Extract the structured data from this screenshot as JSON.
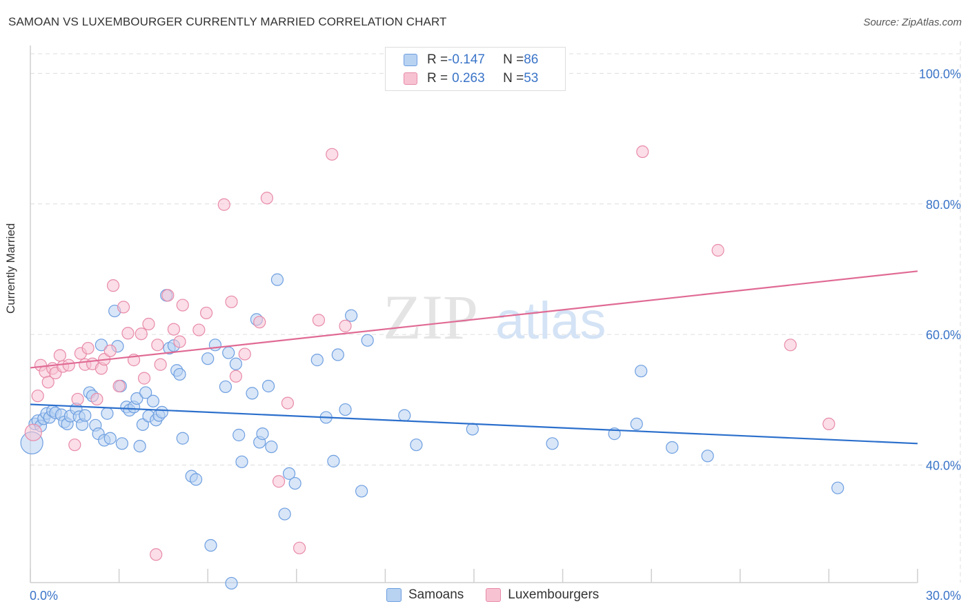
{
  "title": "SAMOAN VS LUXEMBOURGER CURRENTLY MARRIED CORRELATION CHART",
  "source": "Source: ZipAtlas.com",
  "watermark": {
    "zip": "ZIP",
    "atlas": "atlas"
  },
  "legend": {
    "rows": [
      {
        "r_label": "R = ",
        "r_value": "-0.147",
        "n_label": "N = ",
        "n_value": "86"
      },
      {
        "r_label": "R = ",
        "r_value": "0.263",
        "n_label": "N = ",
        "n_value": "53"
      }
    ]
  },
  "colors": {
    "samoans_fill": "#b8d2f2",
    "samoans_stroke": "#6d9ee0",
    "samoans_line": "#2b6fcc",
    "lux_fill": "#f7c3d3",
    "lux_stroke": "#e88aa8",
    "lux_line": "#e06a94",
    "tick_label": "#3a74c8",
    "grid": "#dddddd"
  },
  "chart_data": {
    "type": "scatter",
    "ylabel": "Currently Married",
    "xlim": [
      0,
      30
    ],
    "ylim": [
      22,
      103
    ],
    "x_tick_labels": [
      {
        "value": 0,
        "label": "0.0%"
      },
      {
        "value": 30,
        "label": "30.0%"
      }
    ],
    "y_tick_labels": [
      {
        "value": 40,
        "label": "40.0%"
      },
      {
        "value": 60,
        "label": "60.0%"
      },
      {
        "value": 80,
        "label": "80.0%"
      },
      {
        "value": 100,
        "label": "100.0%"
      }
    ],
    "grid": true,
    "legend_position": "bottom",
    "series": [
      {
        "name": "Samoans",
        "color": "#6d9ee0",
        "trend": {
          "x": [
            0,
            30
          ],
          "y": [
            49.3,
            43.3
          ]
        },
        "points": [
          [
            0.05,
            43.4
          ],
          [
            0.15,
            46.3
          ],
          [
            0.25,
            46.8
          ],
          [
            0.35,
            46.0
          ],
          [
            0.45,
            47.1
          ],
          [
            0.55,
            47.9
          ],
          [
            0.65,
            47.3
          ],
          [
            0.75,
            48.3
          ],
          [
            0.85,
            48.0
          ],
          [
            1.05,
            47.7
          ],
          [
            1.15,
            46.6
          ],
          [
            1.25,
            46.3
          ],
          [
            1.35,
            47.5
          ],
          [
            1.55,
            48.6
          ],
          [
            1.65,
            47.4
          ],
          [
            1.75,
            46.2
          ],
          [
            1.85,
            47.6
          ],
          [
            2.0,
            51.1
          ],
          [
            2.1,
            50.6
          ],
          [
            2.2,
            46.1
          ],
          [
            2.3,
            44.8
          ],
          [
            2.4,
            58.4
          ],
          [
            2.5,
            43.8
          ],
          [
            2.6,
            47.9
          ],
          [
            2.7,
            44.1
          ],
          [
            2.85,
            63.6
          ],
          [
            2.95,
            58.2
          ],
          [
            3.05,
            52.1
          ],
          [
            3.1,
            43.3
          ],
          [
            3.25,
            48.9
          ],
          [
            3.35,
            48.4
          ],
          [
            3.5,
            48.9
          ],
          [
            3.6,
            50.2
          ],
          [
            3.7,
            42.9
          ],
          [
            3.8,
            46.2
          ],
          [
            3.9,
            51.1
          ],
          [
            4.0,
            47.5
          ],
          [
            4.15,
            49.8
          ],
          [
            4.25,
            46.9
          ],
          [
            4.35,
            47.6
          ],
          [
            4.45,
            48.1
          ],
          [
            4.6,
            66.0
          ],
          [
            4.7,
            57.9
          ],
          [
            4.85,
            58.3
          ],
          [
            4.95,
            54.5
          ],
          [
            5.05,
            53.9
          ],
          [
            5.15,
            44.1
          ],
          [
            5.45,
            38.3
          ],
          [
            5.6,
            37.8
          ],
          [
            6.0,
            56.3
          ],
          [
            6.1,
            27.7
          ],
          [
            6.25,
            58.4
          ],
          [
            6.6,
            52.0
          ],
          [
            6.7,
            57.2
          ],
          [
            6.8,
            21.9
          ],
          [
            6.95,
            55.5
          ],
          [
            7.05,
            44.6
          ],
          [
            7.15,
            40.5
          ],
          [
            7.5,
            51.0
          ],
          [
            7.65,
            62.3
          ],
          [
            7.75,
            43.5
          ],
          [
            7.85,
            44.8
          ],
          [
            8.05,
            52.1
          ],
          [
            8.15,
            42.8
          ],
          [
            8.35,
            68.4
          ],
          [
            8.6,
            32.5
          ],
          [
            8.75,
            38.7
          ],
          [
            8.95,
            37.2
          ],
          [
            9.7,
            56.1
          ],
          [
            10.0,
            47.3
          ],
          [
            10.25,
            40.6
          ],
          [
            10.4,
            56.9
          ],
          [
            10.65,
            48.5
          ],
          [
            10.85,
            62.9
          ],
          [
            11.2,
            36.0
          ],
          [
            11.4,
            59.1
          ],
          [
            12.65,
            47.6
          ],
          [
            13.05,
            43.1
          ],
          [
            14.95,
            45.5
          ],
          [
            17.65,
            43.3
          ],
          [
            19.75,
            44.8
          ],
          [
            20.5,
            46.3
          ],
          [
            20.65,
            54.4
          ],
          [
            21.7,
            42.7
          ],
          [
            22.9,
            41.4
          ],
          [
            27.3,
            36.5
          ]
        ]
      },
      {
        "name": "Luxembourgers",
        "color": "#e88aa8",
        "trend": {
          "x": [
            0,
            30
          ],
          "y": [
            54.9,
            69.7
          ]
        },
        "points": [
          [
            0.1,
            45.0
          ],
          [
            0.25,
            50.6
          ],
          [
            0.35,
            55.3
          ],
          [
            0.5,
            54.3
          ],
          [
            0.6,
            52.7
          ],
          [
            0.75,
            54.8
          ],
          [
            0.85,
            54.1
          ],
          [
            1.0,
            56.8
          ],
          [
            1.1,
            55.1
          ],
          [
            1.3,
            55.3
          ],
          [
            1.5,
            43.1
          ],
          [
            1.6,
            50.1
          ],
          [
            1.7,
            57.1
          ],
          [
            1.85,
            55.4
          ],
          [
            1.95,
            57.9
          ],
          [
            2.1,
            55.5
          ],
          [
            2.25,
            50.1
          ],
          [
            2.4,
            54.8
          ],
          [
            2.5,
            56.2
          ],
          [
            2.7,
            57.5
          ],
          [
            2.8,
            67.5
          ],
          [
            3.0,
            52.1
          ],
          [
            3.15,
            64.2
          ],
          [
            3.3,
            60.2
          ],
          [
            3.5,
            56.1
          ],
          [
            3.75,
            60.1
          ],
          [
            3.85,
            53.3
          ],
          [
            4.0,
            61.6
          ],
          [
            4.25,
            26.3
          ],
          [
            4.3,
            58.4
          ],
          [
            4.4,
            55.4
          ],
          [
            4.65,
            66.0
          ],
          [
            4.85,
            60.8
          ],
          [
            5.05,
            58.9
          ],
          [
            5.15,
            64.5
          ],
          [
            5.7,
            60.7
          ],
          [
            5.95,
            63.3
          ],
          [
            6.55,
            79.9
          ],
          [
            6.8,
            65.0
          ],
          [
            6.95,
            53.6
          ],
          [
            7.25,
            57.0
          ],
          [
            7.75,
            61.9
          ],
          [
            8.0,
            80.9
          ],
          [
            8.4,
            37.5
          ],
          [
            8.7,
            49.5
          ],
          [
            9.1,
            27.3
          ],
          [
            9.75,
            62.2
          ],
          [
            10.2,
            87.6
          ],
          [
            10.65,
            61.3
          ],
          [
            20.7,
            88.0
          ],
          [
            23.25,
            72.9
          ],
          [
            25.7,
            58.4
          ],
          [
            27.0,
            46.3
          ]
        ]
      }
    ]
  },
  "bottom_legend": [
    "Samoans",
    "Luxembourgers"
  ]
}
